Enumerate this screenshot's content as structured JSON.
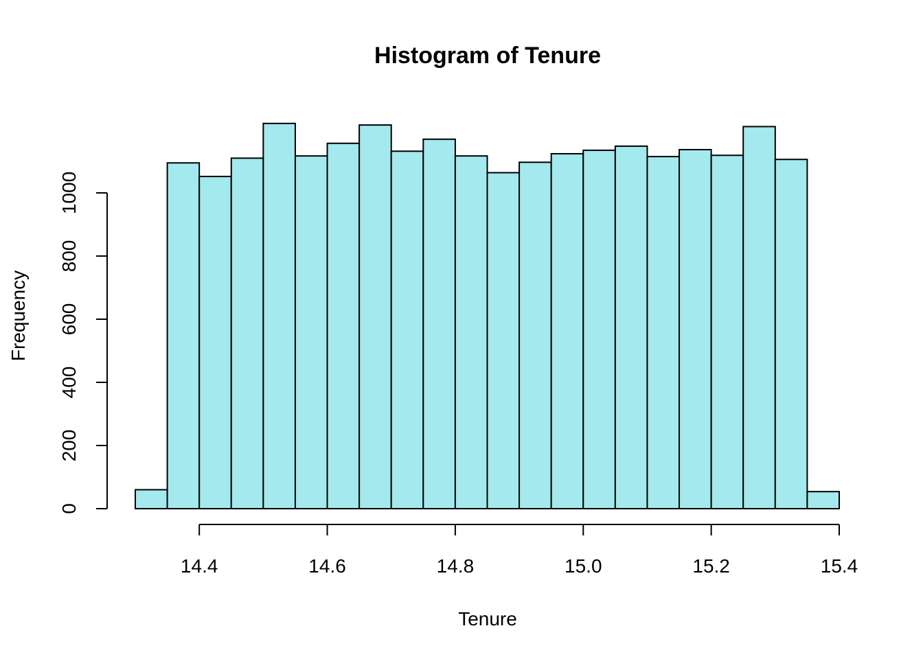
{
  "chart_data": {
    "type": "bar",
    "title": "Histogram of Tenure",
    "xlabel": "Tenure",
    "ylabel": "Frequency",
    "bar_color": "#a3e9ee",
    "bins": [
      {
        "x0": 14.3,
        "x1": 14.35,
        "count": 60
      },
      {
        "x0": 14.35,
        "x1": 14.4,
        "count": 1095
      },
      {
        "x0": 14.4,
        "x1": 14.45,
        "count": 1052
      },
      {
        "x0": 14.45,
        "x1": 14.5,
        "count": 1110
      },
      {
        "x0": 14.5,
        "x1": 14.55,
        "count": 1220
      },
      {
        "x0": 14.55,
        "x1": 14.6,
        "count": 1117
      },
      {
        "x0": 14.6,
        "x1": 14.65,
        "count": 1157
      },
      {
        "x0": 14.65,
        "x1": 14.7,
        "count": 1215
      },
      {
        "x0": 14.7,
        "x1": 14.75,
        "count": 1132
      },
      {
        "x0": 14.75,
        "x1": 14.8,
        "count": 1170
      },
      {
        "x0": 14.8,
        "x1": 14.85,
        "count": 1117
      },
      {
        "x0": 14.85,
        "x1": 14.9,
        "count": 1064
      },
      {
        "x0": 14.9,
        "x1": 14.95,
        "count": 1097
      },
      {
        "x0": 14.95,
        "x1": 15.0,
        "count": 1124
      },
      {
        "x0": 15.0,
        "x1": 15.05,
        "count": 1135
      },
      {
        "x0": 15.05,
        "x1": 15.1,
        "count": 1148
      },
      {
        "x0": 15.1,
        "x1": 15.15,
        "count": 1115
      },
      {
        "x0": 15.15,
        "x1": 15.2,
        "count": 1137
      },
      {
        "x0": 15.2,
        "x1": 15.25,
        "count": 1119
      },
      {
        "x0": 15.25,
        "x1": 15.3,
        "count": 1210
      },
      {
        "x0": 15.3,
        "x1": 15.35,
        "count": 1106
      },
      {
        "x0": 15.35,
        "x1": 15.4,
        "count": 54
      }
    ],
    "x_ticks": [
      "14.4",
      "14.6",
      "14.8",
      "15.0",
      "15.2",
      "15.4"
    ],
    "y_ticks": [
      "0",
      "200",
      "400",
      "600",
      "800",
      "1000"
    ],
    "xlim": [
      14.3,
      15.4
    ],
    "x_axis_range": [
      14.4,
      15.4
    ],
    "ylim": [
      0,
      1200
    ],
    "grid": false,
    "legend": "none"
  }
}
